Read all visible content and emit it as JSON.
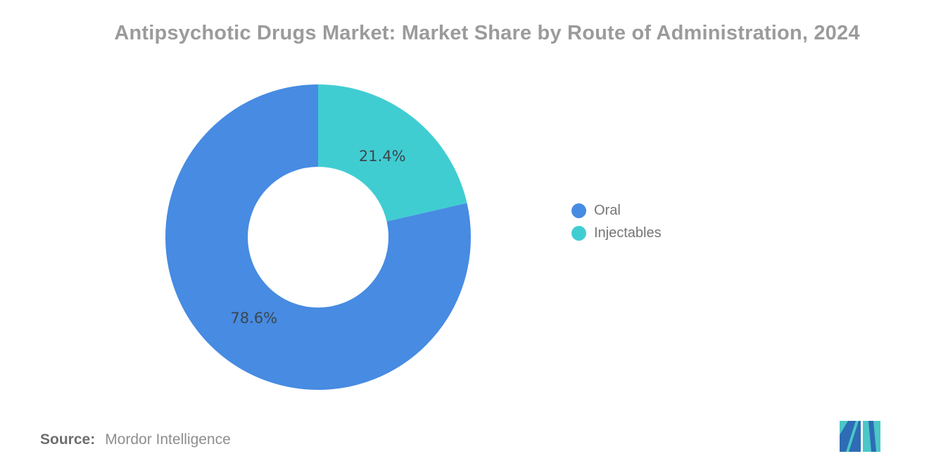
{
  "chart_data": {
    "type": "pie",
    "subtype": "donut",
    "title": "Antipsychotic Drugs Market: Market Share by Route of Administration, 2024",
    "categories": [
      "Oral",
      "Injectables"
    ],
    "values": [
      78.6,
      21.4
    ],
    "data_labels": [
      "78.6%",
      "21.4%"
    ],
    "colors": [
      "#478BE2",
      "#40CDD2"
    ],
    "draw_order_from_top": [
      "Injectables",
      "Oral"
    ],
    "direction": "clockwise",
    "start_angle_deg": 0,
    "legend_position": "right",
    "data_label_color": "#3A4750",
    "title_color": "#9B9B9B"
  },
  "source": {
    "label": "Source:",
    "value": "Mordor Intelligence"
  },
  "logo": {
    "name": "mordor-intelligence-logo",
    "blue": "#2E6CB5",
    "teal": "#4AC7C7"
  }
}
